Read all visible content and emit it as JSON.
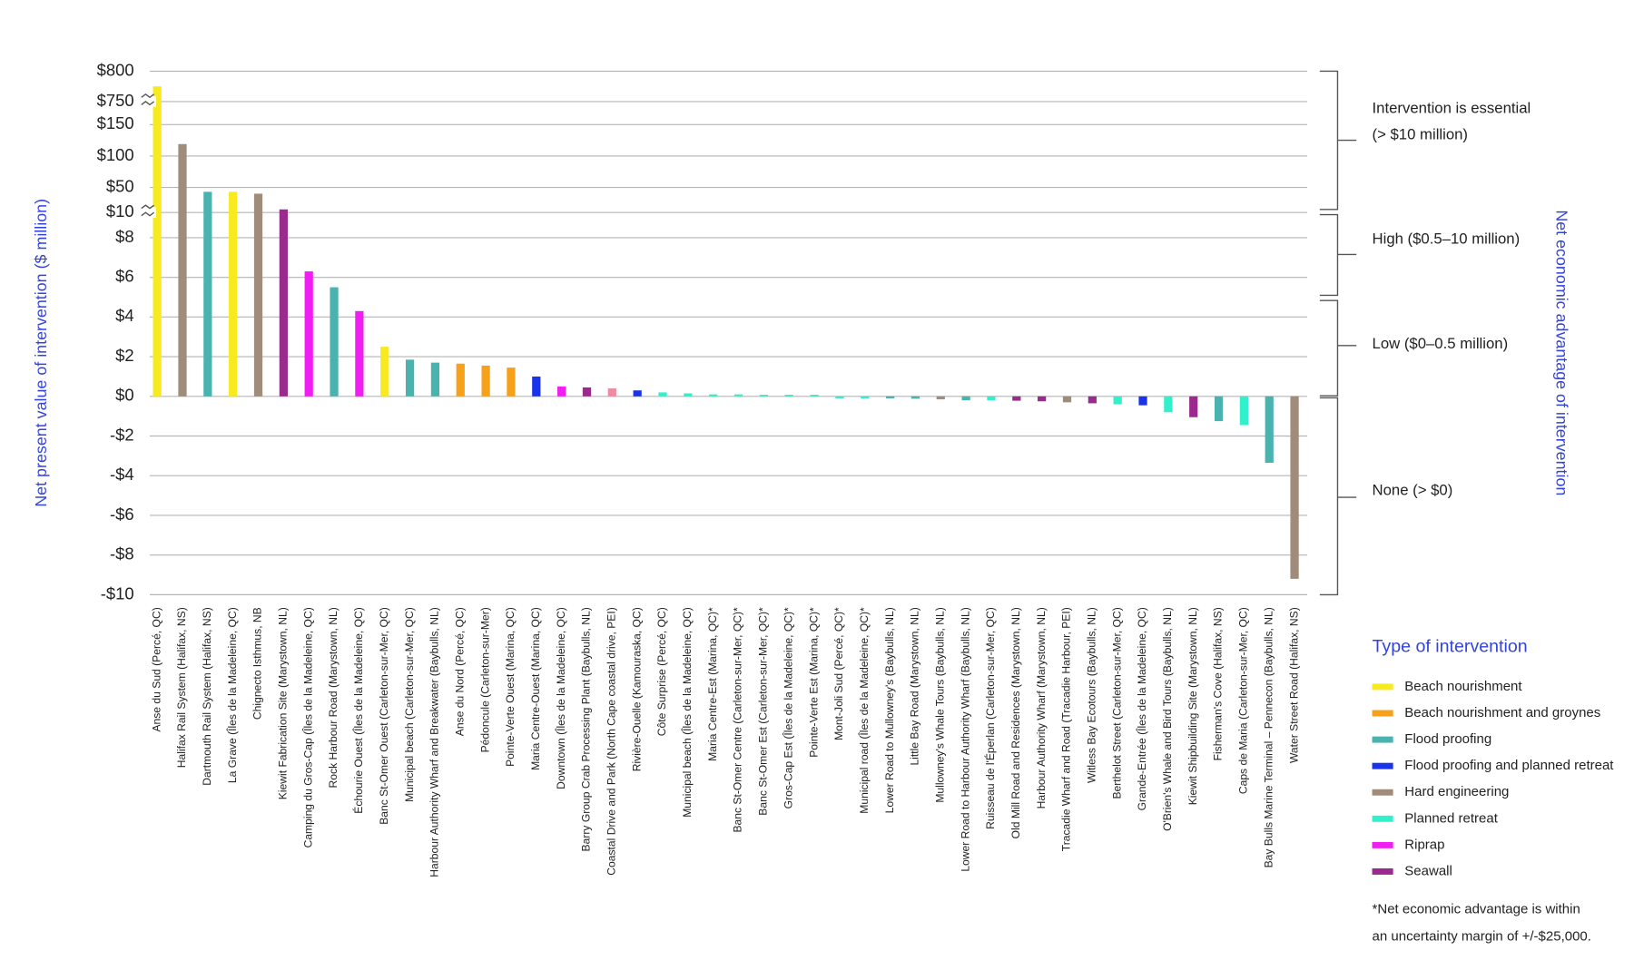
{
  "chart_data": {
    "type": "bar",
    "y_axis_title": "Net present value of intervention ($ million)",
    "y2_axis_title": "Net economic advantage of intervention",
    "categories": [
      "Anse du Sud (Percé, QC)",
      "Halifax Rail System (Halifax, NS)",
      "Dartmouth Rail System (Halifax, NS)",
      "La Grave (Îles de la Madeleine, QC)",
      "Chignecto Isthmus, NB",
      "Kiewit Fabrication Site (Marystown, NL)",
      "Camping du Gros-Cap (Îles de la Madeleine, QC)",
      "Rock Harbour Road (Marystown, NL)",
      "Échourie Ouest (Îles de la Madeleine, QC)",
      "Banc St-Omer Ouest (Carleton-sur-Mer, QC)",
      "Municipal beach (Carleton-sur-Mer, QC)",
      "Harbour Authority Wharf and Breakwater (Baybulls, NL)",
      "Anse du Nord (Percé, QC)",
      "Pédoncule (Carleton-sur-Mer)",
      "Pointe-Verte Ouest (Marina, QC)",
      "Maria Centre-Ouest (Marina, QC)",
      "Downtown (Îles de la Madeleine, QC)",
      "Barry Group Crab Processing Plant (Baybulls, NL)",
      "Coastal Drive and Park (North Cape coastal drive, PEI)",
      "Rivière-Ouelle (Kamouraska, QC)",
      "Côte Surprise (Percé, QC)",
      "Municipal beach (Îles de la Madeleine, QC)",
      "Maria Centre-Est (Marina, QC)*",
      "Banc St-Omer Centre (Carleton-sur-Mer, QC)*",
      "Banc St-Omer Est (Carleton-sur-Mer, QC)*",
      "Gros-Cap Est (Îles de la Madeleine, QC)*",
      "Pointe-Verte Est (Marina, QC)*",
      "Mont-Joli Sud (Percé, QC)*",
      "Municipal road (Îles de la Madeleine, QC)*",
      "Lower Road to Mullowney's (Baybulls, NL)",
      "Little Bay Road (Marystown, NL)",
      "Mullowney's Whale Tours (Baybulls, NL)",
      "Lower Road to Harbour Authority Wharf (Baybulls, NL)",
      "Ruisseau de l'Éperlan (Carleton-sur-Mer, QC)",
      "Old Mill Road and Residences (Marystown, NL)",
      "Harbour Authority Wharf (Marystown, NL)",
      "Tracadie Wharf and Road (Tracadie Harbour, PEI)",
      "Witless Bay Ecotours (Baybulls, NL)",
      "Berthelot Street (Carleton-sur-Mer, QC)",
      "Grande-Entrée (Îles de la Madeleine, QC)",
      "O'Brien's Whale and Bird Tours (Baybulls, NL)",
      "Kiewit Shipbuilding Site (Marystown, NL)",
      "Fisherman's Cove (Halifax, NS)",
      "Caps de Maria (Carleton-sur-Mer, QC)",
      "Bay Bulls Marine Terminal – Pennecon (Baybulls, NL)",
      "Water Street Road (Halifax, NS)"
    ],
    "values": [
      775,
      119,
      43,
      43,
      40,
      15,
      6.3,
      5.5,
      4.3,
      2.5,
      1.85,
      1.7,
      1.65,
      1.55,
      1.45,
      1.0,
      0.5,
      0.45,
      0.4,
      0.3,
      0.2,
      0.15,
      0.1,
      0.1,
      0.08,
      0.08,
      0.08,
      -0.1,
      -0.1,
      -0.1,
      -0.12,
      -0.15,
      -0.2,
      -0.2,
      -0.22,
      -0.25,
      -0.3,
      -0.35,
      -0.4,
      -0.45,
      -0.8,
      -1.05,
      -1.25,
      -1.45,
      -3.35,
      -9.2
    ],
    "colors": [
      "#f7ea1f",
      "#a08c7a",
      "#4ab3b0",
      "#f7ea1f",
      "#a08c7a",
      "#9b2a8f",
      "#f01ef0",
      "#4ab3b0",
      "#f01ef0",
      "#f7ea1f",
      "#4ab3b0",
      "#4ab3b0",
      "#f7a11a",
      "#f7a11a",
      "#f7a11a",
      "#1a33e8",
      "#f01ef0",
      "#9b2a8f",
      "#f08aa0",
      "#1a33e8",
      "#33f0cc",
      "#33f0cc",
      "#33f0cc",
      "#33f0cc",
      "#33f0cc",
      "#33f0cc",
      "#33f0cc",
      "#33f0cc",
      "#33f0cc",
      "#4ab3b0",
      "#4ab3b0",
      "#a08c7a",
      "#4ab3b0",
      "#33f0cc",
      "#9b2a8f",
      "#9b2a8f",
      "#a08c7a",
      "#9b2a8f",
      "#33f0cc",
      "#1a33e8",
      "#33f0cc",
      "#9b2a8f",
      "#4ab3b0",
      "#33f0cc",
      "#4ab3b0",
      "#a08c7a"
    ],
    "ylim": [
      -10,
      800
    ],
    "y_segments": [
      [
        -10,
        8
      ],
      [
        10,
        150
      ],
      [
        750,
        800
      ]
    ],
    "yticks": [
      {
        "value": 800,
        "label": "$800"
      },
      {
        "value": 750,
        "label": "$750"
      },
      {
        "value": 150,
        "label": "$150"
      },
      {
        "value": 100,
        "label": "$100"
      },
      {
        "value": 50,
        "label": "$50"
      },
      {
        "value": 10,
        "label": "$10"
      },
      {
        "value": 8,
        "label": "$8"
      },
      {
        "value": 6,
        "label": "$6"
      },
      {
        "value": 4,
        "label": "$4"
      },
      {
        "value": 2,
        "label": "$2"
      },
      {
        "value": 0,
        "label": "$0"
      },
      {
        "value": -2,
        "label": "-$2"
      },
      {
        "value": -4,
        "label": "-$4"
      },
      {
        "value": -6,
        "label": "-$6"
      },
      {
        "value": -8,
        "label": "-$8"
      },
      {
        "value": -10,
        "label": "-$10"
      }
    ],
    "grid": true,
    "advantage_levels": [
      [
        "Intervention is essential",
        "(> $10 million)"
      ],
      [
        "High ($0.5–10 million)"
      ],
      [
        "Low ($0–0.5 million)"
      ],
      [
        "None (> $0)"
      ]
    ],
    "legend": {
      "title": "Type of intervention",
      "items": [
        {
          "name": "Beach nourishment",
          "color": "#f7ea1f"
        },
        {
          "name": "Beach nourishment and groynes",
          "color": "#f7a11a"
        },
        {
          "name": "Flood proofing",
          "color": "#4ab3b0"
        },
        {
          "name": "Flood proofing and planned retreat",
          "color": "#1a33e8"
        },
        {
          "name": "Hard engineering",
          "color": "#a08c7a"
        },
        {
          "name": "Planned retreat",
          "color": "#33f0cc"
        },
        {
          "name": "Riprap",
          "color": "#f01ef0"
        },
        {
          "name": "Seawall",
          "color": "#9b2a8f"
        }
      ]
    },
    "footnote": [
      "*Net economic advantage is within",
      "an uncertainty margin of +/-$25,000."
    ]
  }
}
